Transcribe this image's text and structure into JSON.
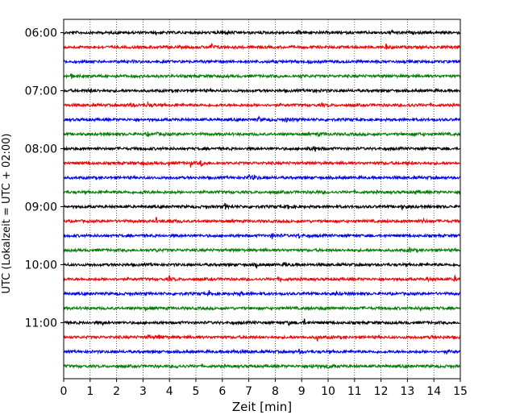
{
  "chart_data": {
    "type": "line",
    "title": "",
    "xlabel": "Zeit  [min]",
    "ylabel": "UTC (Lokalzeit = UTC + 02:00)",
    "xlim": [
      0,
      15
    ],
    "x_ticks": [
      "0",
      "1",
      "2",
      "3",
      "4",
      "5",
      "6",
      "7",
      "8",
      "9",
      "10",
      "11",
      "12",
      "13",
      "14",
      "15"
    ],
    "y_tick_labels": [
      "06:00",
      "07:00",
      "08:00",
      "09:00",
      "10:00",
      "11:00"
    ],
    "grid": "vertical dotted",
    "trace_colors": [
      "#000000",
      "#ff0000",
      "#0000ff",
      "#008000"
    ],
    "traces": [
      {
        "start": "06:00",
        "events": [
          [
            6.0,
            0.7
          ],
          [
            8.9,
            0.5
          ],
          [
            12.4,
            0.5
          ],
          [
            3.5,
            0.3
          ]
        ]
      },
      {
        "start": "06:15",
        "events": [
          [
            5.6,
            0.8
          ],
          [
            12.2,
            0.5
          ]
        ]
      },
      {
        "start": "06:30",
        "events": [
          [
            9.3,
            0.4
          ],
          [
            2.2,
            0.3
          ]
        ]
      },
      {
        "start": "06:45",
        "events": [
          [
            0.3,
            0.6
          ],
          [
            9.0,
            0.5
          ]
        ]
      },
      {
        "start": "07:00",
        "events": [
          [
            1.0,
            0.6
          ],
          [
            9.4,
            0.8
          ]
        ]
      },
      {
        "start": "07:15",
        "events": [
          [
            2.5,
            0.7
          ],
          [
            3.2,
            0.8
          ],
          [
            9.8,
            0.5
          ],
          [
            13.1,
            0.5
          ]
        ]
      },
      {
        "start": "07:30",
        "events": [
          [
            7.4,
            0.6
          ],
          [
            8.4,
            0.8
          ]
        ]
      },
      {
        "start": "07:45",
        "events": [
          [
            3.2,
            0.4
          ],
          [
            3.5,
            0.5
          ],
          [
            9.6,
            0.5
          ],
          [
            13.3,
            0.5
          ]
        ]
      },
      {
        "start": "08:00",
        "events": [
          [
            9.2,
            0.6
          ],
          [
            9.5,
            0.6
          ]
        ]
      },
      {
        "start": "08:15",
        "events": [
          [
            3.0,
            0.4
          ],
          [
            4.0,
            0.5
          ],
          [
            4.8,
            0.6
          ],
          [
            5.2,
            0.7
          ],
          [
            12.0,
            0.3
          ],
          [
            13.0,
            0.5
          ]
        ]
      },
      {
        "start": "08:30",
        "events": [
          [
            7.0,
            0.8
          ],
          [
            7.2,
            0.6
          ]
        ]
      },
      {
        "start": "08:45",
        "events": [
          [
            3.0,
            0.4
          ],
          [
            9.6,
            0.4
          ],
          [
            13.3,
            0.5
          ]
        ]
      },
      {
        "start": "09:00",
        "events": [
          [
            6.1,
            0.6
          ],
          [
            8.5,
            0.5
          ],
          [
            12.8,
            0.5
          ]
        ]
      },
      {
        "start": "09:15",
        "events": [
          [
            3.5,
            0.6
          ],
          [
            4.0,
            0.8
          ],
          [
            13.6,
            0.6
          ]
        ]
      },
      {
        "start": "09:30",
        "events": [
          [
            7.9,
            0.8
          ],
          [
            8.9,
            0.5
          ]
        ]
      },
      {
        "start": "09:45",
        "events": [
          [
            3.5,
            0.4
          ],
          [
            13.1,
            0.5
          ]
        ]
      },
      {
        "start": "10:00",
        "events": [
          [
            7.3,
            0.6
          ],
          [
            8.4,
            0.5
          ],
          [
            15.0,
            0.5
          ]
        ]
      },
      {
        "start": "10:15",
        "events": [
          [
            4.0,
            0.6
          ],
          [
            8.2,
            0.5
          ],
          [
            13.8,
            0.5
          ],
          [
            14.8,
            0.5
          ]
        ]
      },
      {
        "start": "10:30",
        "events": [
          [
            5.5,
            0.5
          ],
          [
            6.7,
            0.7
          ],
          [
            10.3,
            0.5
          ]
        ]
      },
      {
        "start": "10:45",
        "events": [
          [
            3.1,
            0.4
          ],
          [
            9.8,
            0.5
          ],
          [
            13.5,
            0.5
          ]
        ]
      },
      {
        "start": "11:00",
        "events": [
          [
            1.5,
            0.4
          ],
          [
            8.5,
            0.6
          ],
          [
            9.1,
            0.6
          ]
        ]
      },
      {
        "start": "11:15",
        "events": [
          [
            3.2,
            0.5
          ],
          [
            3.6,
            0.8
          ],
          [
            9.6,
            0.6
          ],
          [
            13.9,
            0.5
          ]
        ]
      },
      {
        "start": "11:30",
        "events": [
          [
            6.4,
            0.6
          ],
          [
            8.9,
            0.5
          ],
          [
            14.5,
            0.5
          ]
        ]
      },
      {
        "start": "11:45",
        "events": [
          [
            4.3,
            0.5
          ],
          [
            9.4,
            0.6
          ],
          [
            10.0,
            0.6
          ]
        ]
      }
    ]
  }
}
